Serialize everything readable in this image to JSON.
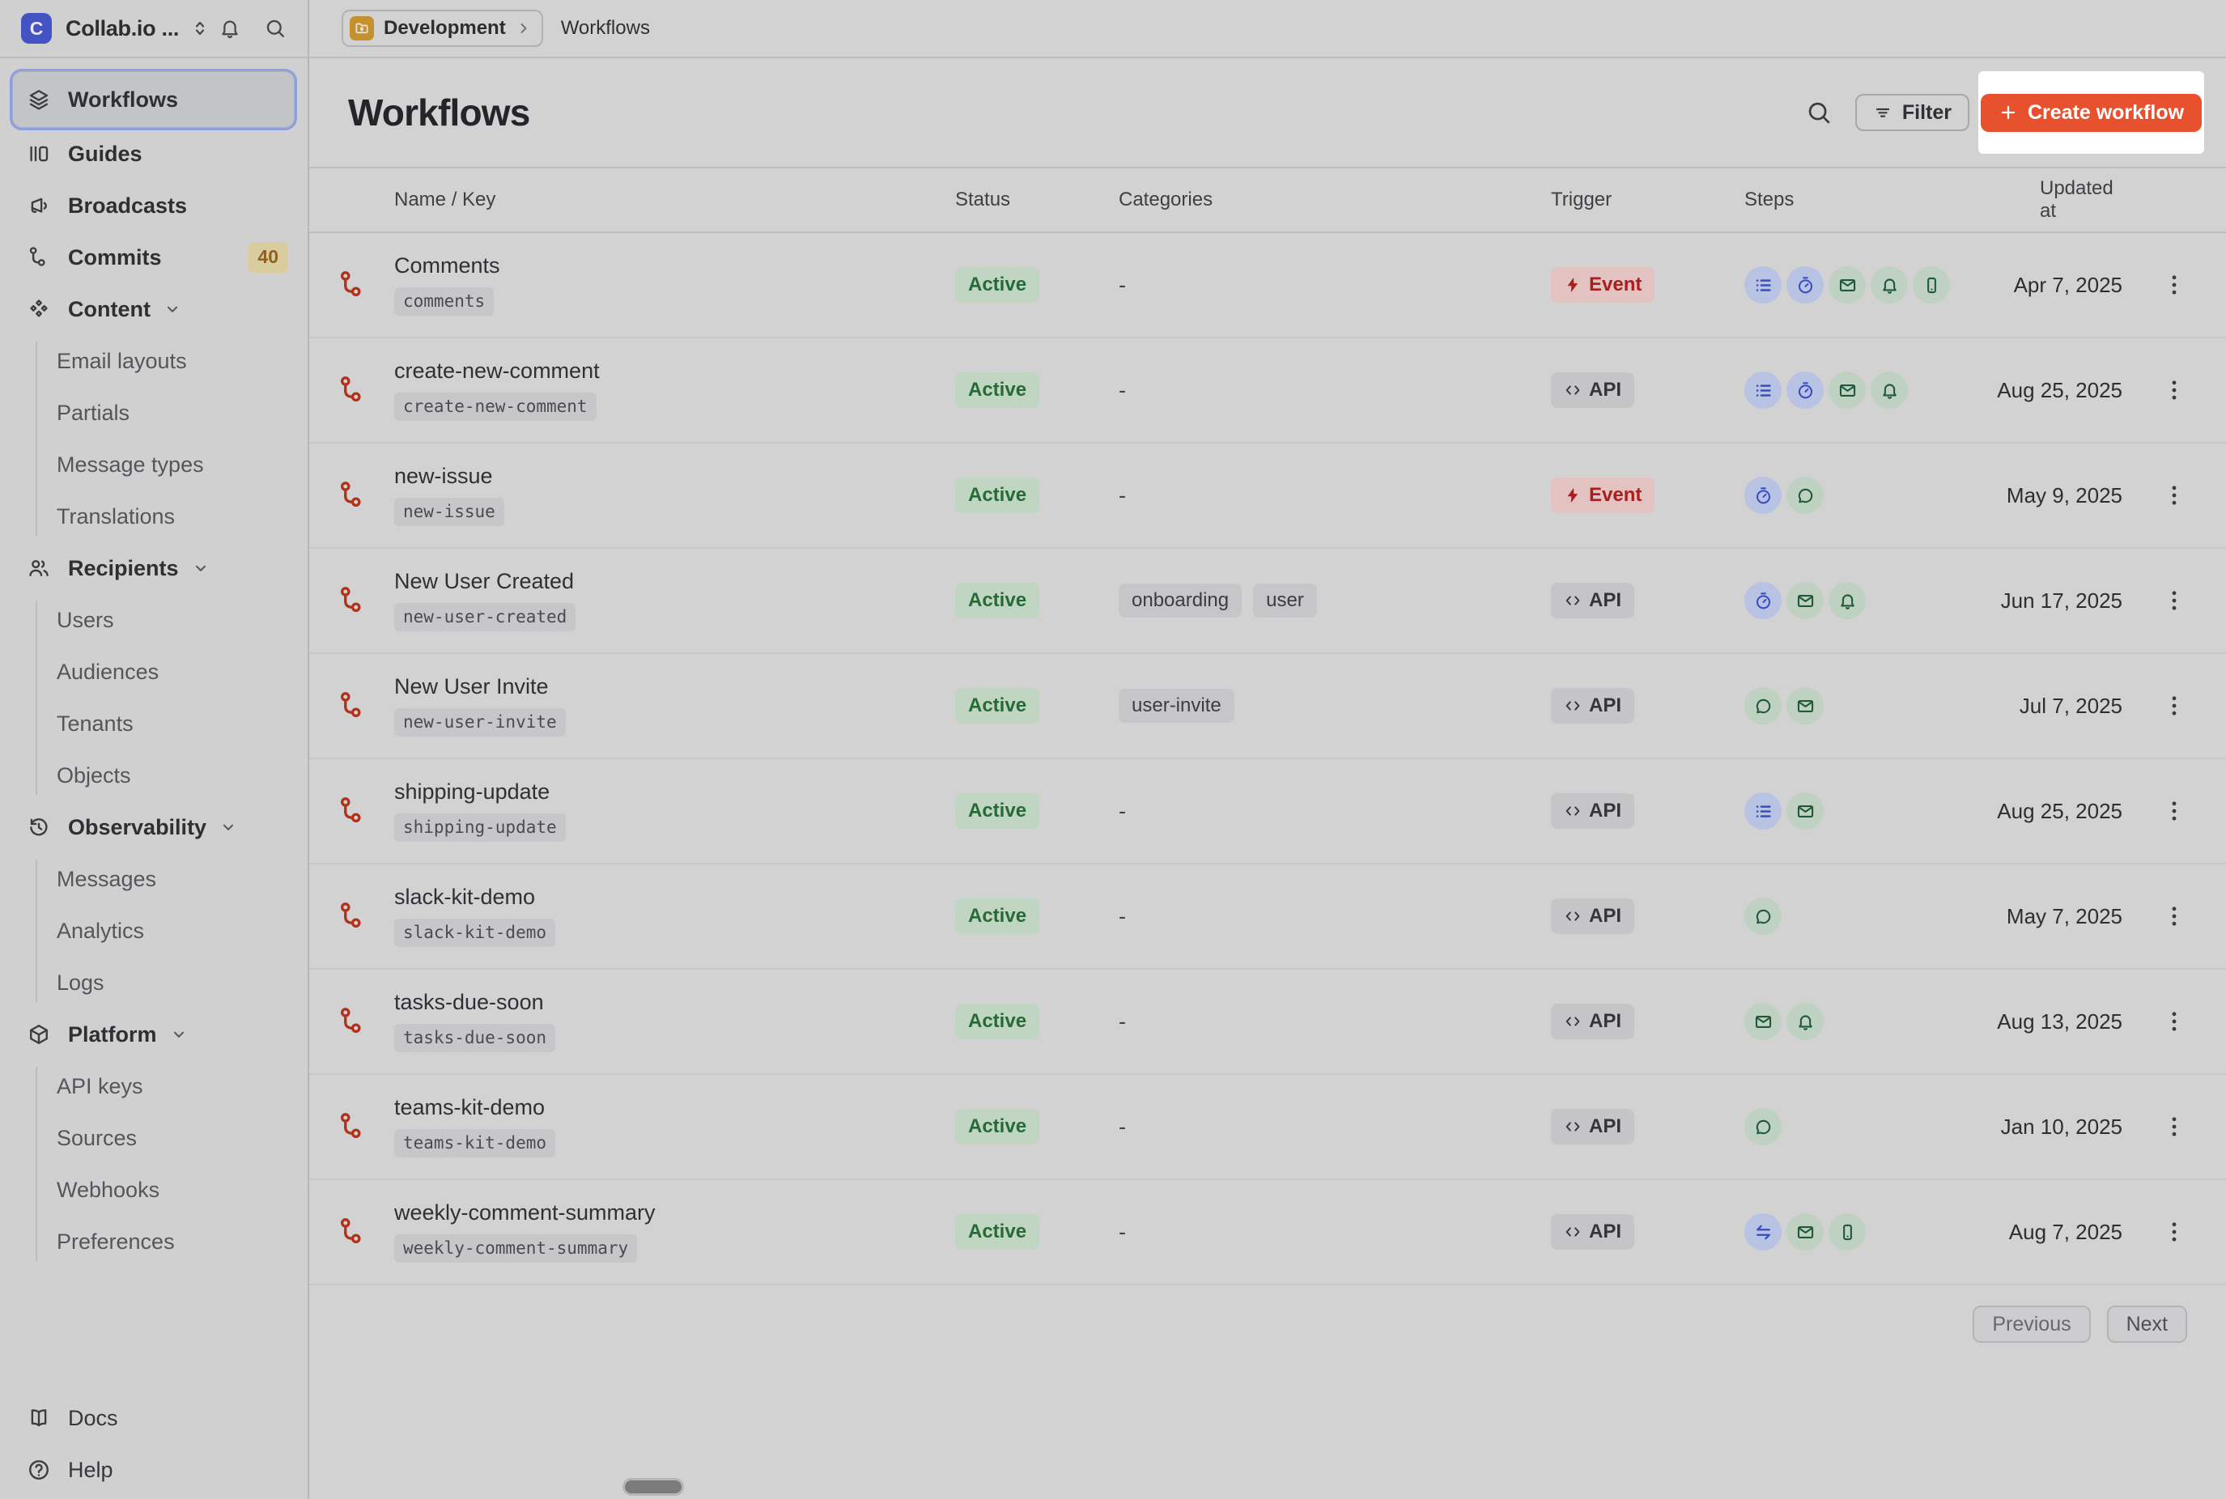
{
  "app": {
    "brand": "Collab.io ...",
    "environment": "Development",
    "breadcrumb_page": "Workflows"
  },
  "colors": {
    "accent_orange": "#E8512E",
    "status_active_green": "#266A36",
    "trigger_event_red": "#A81F1F",
    "workflow_icon_red": "#B23119",
    "brand_blue": "#4453C4",
    "folder_orange": "#C5912E",
    "spotlight_white": "#FFFFFF"
  },
  "sidebar": {
    "items": [
      {
        "label": "Workflows",
        "icon": "layers-icon",
        "selected": true
      },
      {
        "label": "Guides",
        "icon": "guides-icon"
      },
      {
        "label": "Broadcasts",
        "icon": "megaphone-icon"
      },
      {
        "label": "Commits",
        "icon": "commit-icon",
        "badge": "40"
      },
      {
        "label": "Content",
        "icon": "content-icon",
        "expandable": true,
        "children": [
          "Email layouts",
          "Partials",
          "Message types",
          "Translations"
        ]
      },
      {
        "label": "Recipients",
        "icon": "users-icon",
        "expandable": true,
        "children": [
          "Users",
          "Audiences",
          "Tenants",
          "Objects"
        ]
      },
      {
        "label": "Observability",
        "icon": "history-icon",
        "expandable": true,
        "children": [
          "Messages",
          "Analytics",
          "Logs"
        ]
      },
      {
        "label": "Platform",
        "icon": "package-icon",
        "expandable": true,
        "children": [
          "API keys",
          "Sources",
          "Webhooks",
          "Preferences"
        ]
      }
    ],
    "footer": [
      {
        "label": "Docs",
        "icon": "book-icon"
      },
      {
        "label": "Help",
        "icon": "help-icon"
      }
    ]
  },
  "page": {
    "title": "Workflows",
    "filter_label": "Filter",
    "create_label": "Create workflow"
  },
  "table": {
    "headers": [
      "Name / Key",
      "Status",
      "Categories",
      "Trigger",
      "Steps",
      "Updated at"
    ],
    "empty_placeholder": "-",
    "rows": [
      {
        "name": "Comments",
        "key": "comments",
        "status": "Active",
        "categories": [],
        "trigger": {
          "type": "event",
          "label": "Event"
        },
        "steps": [
          {
            "icon": "batch-icon",
            "tone": "blue"
          },
          {
            "icon": "delay-icon",
            "tone": "blue"
          },
          {
            "icon": "email-icon",
            "tone": "green"
          },
          {
            "icon": "in-app-icon",
            "tone": "green"
          },
          {
            "icon": "push-icon",
            "tone": "green"
          }
        ],
        "updated": "Apr 7, 2025"
      },
      {
        "name": "create-new-comment",
        "key": "create-new-comment",
        "status": "Active",
        "categories": [],
        "trigger": {
          "type": "api",
          "label": "API"
        },
        "steps": [
          {
            "icon": "batch-icon",
            "tone": "blue"
          },
          {
            "icon": "delay-icon",
            "tone": "blue"
          },
          {
            "icon": "email-icon",
            "tone": "green"
          },
          {
            "icon": "in-app-icon",
            "tone": "green"
          }
        ],
        "updated": "Aug 25, 2025"
      },
      {
        "name": "new-issue",
        "key": "new-issue",
        "status": "Active",
        "categories": [],
        "trigger": {
          "type": "event",
          "label": "Event"
        },
        "steps": [
          {
            "icon": "delay-icon",
            "tone": "blue"
          },
          {
            "icon": "chat-icon",
            "tone": "green"
          }
        ],
        "updated": "May 9, 2025"
      },
      {
        "name": "New User Created",
        "key": "new-user-created",
        "status": "Active",
        "categories": [
          "onboarding",
          "user"
        ],
        "trigger": {
          "type": "api",
          "label": "API"
        },
        "steps": [
          {
            "icon": "delay-icon",
            "tone": "blue"
          },
          {
            "icon": "email-icon",
            "tone": "green"
          },
          {
            "icon": "in-app-icon",
            "tone": "green"
          }
        ],
        "updated": "Jun 17, 2025"
      },
      {
        "name": "New User Invite",
        "key": "new-user-invite",
        "status": "Active",
        "categories": [
          "user-invite"
        ],
        "trigger": {
          "type": "api",
          "label": "API"
        },
        "steps": [
          {
            "icon": "chat-icon",
            "tone": "green"
          },
          {
            "icon": "email-icon",
            "tone": "green"
          }
        ],
        "updated": "Jul 7, 2025"
      },
      {
        "name": "shipping-update",
        "key": "shipping-update",
        "status": "Active",
        "categories": [],
        "trigger": {
          "type": "api",
          "label": "API"
        },
        "steps": [
          {
            "icon": "batch-icon",
            "tone": "blue"
          },
          {
            "icon": "email-icon",
            "tone": "green"
          }
        ],
        "updated": "Aug 25, 2025"
      },
      {
        "name": "slack-kit-demo",
        "key": "slack-kit-demo",
        "status": "Active",
        "categories": [],
        "trigger": {
          "type": "api",
          "label": "API"
        },
        "steps": [
          {
            "icon": "chat-icon",
            "tone": "green"
          }
        ],
        "updated": "May 7, 2025"
      },
      {
        "name": "tasks-due-soon",
        "key": "tasks-due-soon",
        "status": "Active",
        "categories": [],
        "trigger": {
          "type": "api",
          "label": "API"
        },
        "steps": [
          {
            "icon": "email-icon",
            "tone": "green"
          },
          {
            "icon": "in-app-icon",
            "tone": "green"
          }
        ],
        "updated": "Aug 13, 2025"
      },
      {
        "name": "teams-kit-demo",
        "key": "teams-kit-demo",
        "status": "Active",
        "categories": [],
        "trigger": {
          "type": "api",
          "label": "API"
        },
        "steps": [
          {
            "icon": "chat-icon",
            "tone": "green"
          }
        ],
        "updated": "Jan 10, 2025"
      },
      {
        "name": "weekly-comment-summary",
        "key": "weekly-comment-summary",
        "status": "Active",
        "categories": [],
        "trigger": {
          "type": "api",
          "label": "API"
        },
        "steps": [
          {
            "icon": "branch-icon",
            "tone": "blue"
          },
          {
            "icon": "email-icon",
            "tone": "green"
          },
          {
            "icon": "push-icon",
            "tone": "green"
          }
        ],
        "updated": "Aug 7, 2025"
      }
    ]
  },
  "pagination": {
    "previous": "Previous",
    "next": "Next"
  }
}
